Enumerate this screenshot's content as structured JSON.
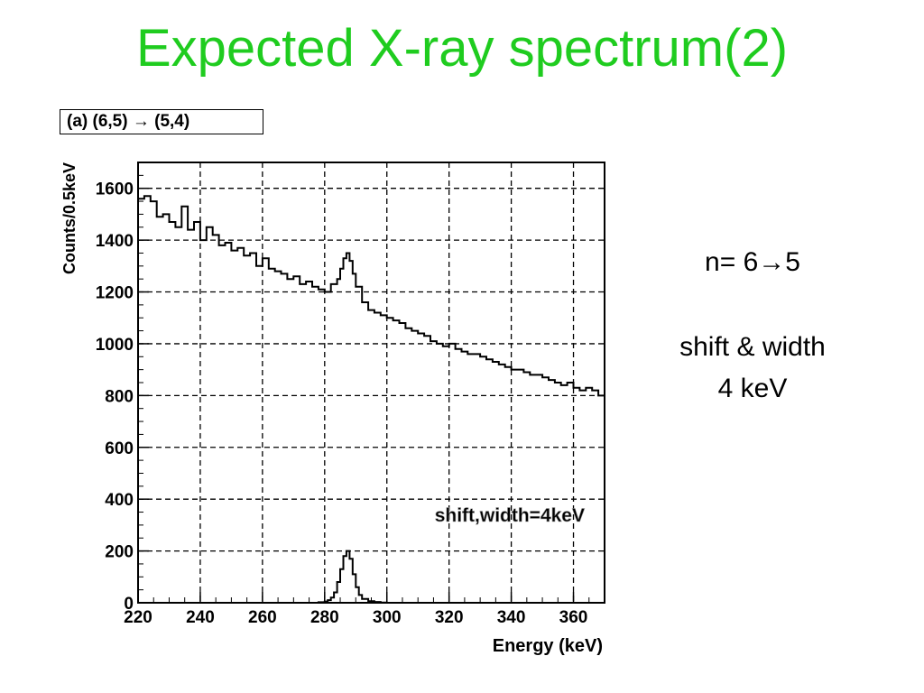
{
  "slide": {
    "title": "Expected X-ray spectrum(2)",
    "panel_label": "(a) (6,5) → (5,4)",
    "notes": {
      "transition": "n= 6→5",
      "shift_label": "shift & width",
      "shift_value": "4 keV"
    }
  },
  "chart_data": {
    "type": "line",
    "style": "step",
    "title": "",
    "xlabel": "Energy (keV)",
    "ylabel": "Counts/0.5keV",
    "xlim": [
      220,
      370
    ],
    "ylim": [
      0,
      1700
    ],
    "x_ticks": [
      220,
      240,
      260,
      280,
      300,
      320,
      340,
      360
    ],
    "y_ticks": [
      0,
      200,
      400,
      600,
      800,
      1000,
      1200,
      1400,
      1600
    ],
    "grid": true,
    "annotation": "shift,width=4keV",
    "series": [
      {
        "color": "#000000",
        "x": [
          220,
          222,
          224,
          226,
          228,
          230,
          232,
          234,
          236,
          238,
          240,
          242,
          244,
          246,
          248,
          250,
          252,
          254,
          256,
          258,
          260,
          262,
          264,
          266,
          268,
          270,
          272,
          274,
          276,
          278,
          280,
          282,
          284,
          285,
          286,
          287,
          288,
          289,
          290,
          292,
          294,
          296,
          298,
          300,
          302,
          304,
          306,
          308,
          310,
          312,
          314,
          316,
          318,
          320,
          322,
          324,
          326,
          328,
          330,
          332,
          334,
          336,
          338,
          340,
          342,
          344,
          346,
          348,
          350,
          352,
          354,
          356,
          358,
          360,
          362,
          364,
          366,
          368,
          370
        ],
        "values": [
          1560,
          1570,
          1550,
          1490,
          1500,
          1470,
          1450,
          1530,
          1440,
          1470,
          1400,
          1450,
          1420,
          1380,
          1390,
          1360,
          1370,
          1340,
          1350,
          1300,
          1330,
          1290,
          1280,
          1270,
          1250,
          1260,
          1230,
          1240,
          1220,
          1210,
          1200,
          1230,
          1250,
          1290,
          1330,
          1350,
          1320,
          1270,
          1220,
          1160,
          1130,
          1120,
          1110,
          1100,
          1090,
          1080,
          1060,
          1050,
          1040,
          1030,
          1010,
          1000,
          990,
          1000,
          980,
          970,
          960,
          960,
          950,
          940,
          930,
          920,
          910,
          900,
          900,
          890,
          880,
          880,
          870,
          860,
          850,
          840,
          850,
          830,
          820,
          830,
          820,
          800,
          790
        ]
      },
      {
        "color": "#000000",
        "x": [
          276,
          278,
          280,
          281,
          282,
          283,
          284,
          285,
          286,
          287,
          288,
          289,
          290,
          291,
          292,
          294,
          296,
          298,
          300,
          302
        ],
        "values": [
          0,
          2,
          5,
          10,
          20,
          40,
          80,
          130,
          180,
          200,
          170,
          110,
          60,
          30,
          15,
          6,
          3,
          1,
          0,
          0
        ]
      }
    ]
  }
}
